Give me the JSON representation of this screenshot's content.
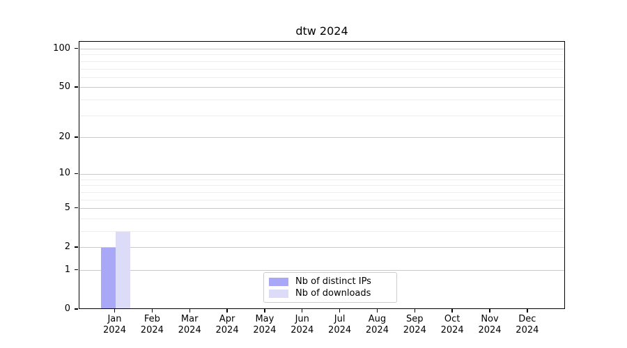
{
  "chart_data": {
    "type": "bar",
    "title": "dtw 2024",
    "year": "2024",
    "months": [
      "Jan",
      "Feb",
      "Mar",
      "Apr",
      "May",
      "Jun",
      "Jul",
      "Aug",
      "Sep",
      "Oct",
      "Nov",
      "Dec"
    ],
    "categories": [
      "Jan 2024",
      "Feb 2024",
      "Mar 2024",
      "Apr 2024",
      "May 2024",
      "Jun 2024",
      "Jul 2024",
      "Aug 2024",
      "Sep 2024",
      "Oct 2024",
      "Nov 2024",
      "Dec 2024"
    ],
    "series": [
      {
        "name": "Nb of distinct IPs",
        "color": "#a8a8f6",
        "values": [
          2,
          0,
          0,
          0,
          0,
          0,
          0,
          0,
          0,
          0,
          0,
          0
        ]
      },
      {
        "name": "Nb of downloads",
        "color": "#dcdbf8",
        "values": [
          3,
          0,
          0,
          0,
          0,
          0,
          0,
          0,
          0,
          0,
          0,
          0
        ]
      }
    ],
    "yscale": "log1p",
    "ylim": [
      0,
      114
    ],
    "y_major_ticks": [
      0,
      1,
      2,
      5,
      10,
      20,
      50,
      100
    ],
    "y_minor_ticks": [
      3,
      4,
      6,
      7,
      8,
      9,
      30,
      40,
      60,
      70,
      80,
      90
    ],
    "grid": "horizontal",
    "xlabel": "",
    "ylabel": "",
    "legend": {
      "position": "lower center",
      "entries": [
        "Nb of distinct IPs",
        "Nb of downloads"
      ]
    }
  },
  "colors": {
    "grid_major": "#c9c9c9",
    "grid_minor": "#ededed",
    "axis": "#000000",
    "background": "#ffffff"
  }
}
